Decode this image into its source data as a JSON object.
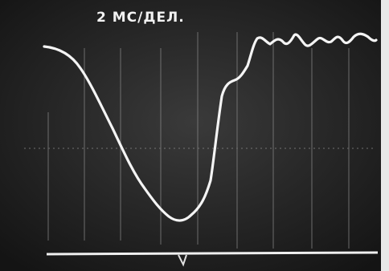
{
  "scale_label": "2 МС/ДЕЛ."
}
